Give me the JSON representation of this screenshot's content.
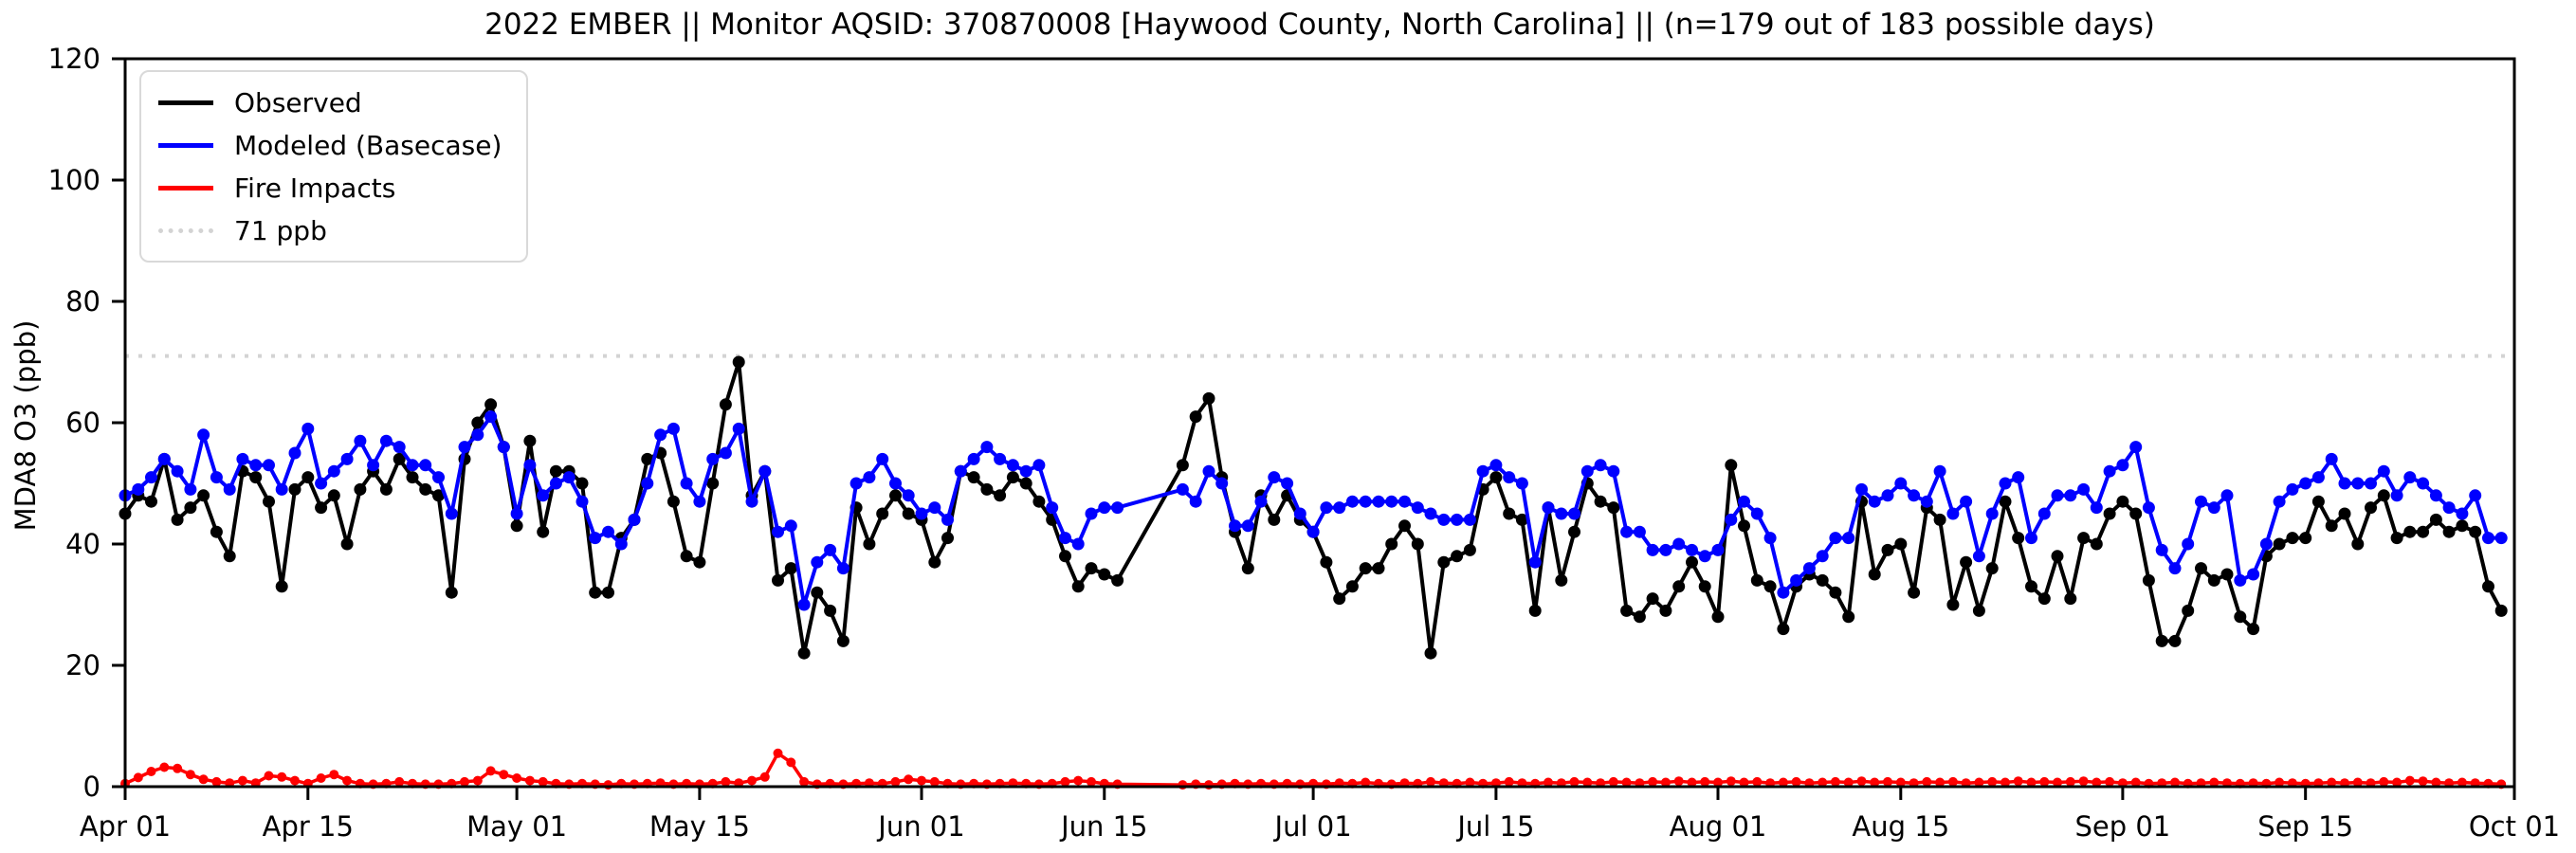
{
  "header": {
    "title": "2022 EMBER || Monitor AQSID: 370870008 [Haywood County, North Carolina] || (n=179 out of 183 possible days)"
  },
  "legend": {
    "position": "upper left",
    "items": [
      {
        "label": "Observed"
      },
      {
        "label": "Modeled (Basecase)"
      },
      {
        "label": "Fire Impacts"
      },
      {
        "label": "71 ppb"
      }
    ]
  },
  "chart_data": {
    "type": "line",
    "title": "2022 EMBER || Monitor AQSID: 370870008 [Haywood County, North Carolina] || (n=179 out of 183 possible days)",
    "xlabel": "",
    "ylabel": "MDA8 O3 (ppb)",
    "ylim": [
      0,
      120
    ],
    "y_ticks": [
      0,
      20,
      40,
      60,
      80,
      100,
      120
    ],
    "grid": false,
    "x_axis_days_total": 183,
    "x_ticks": [
      {
        "day": 0,
        "label": "Apr 01"
      },
      {
        "day": 14,
        "label": "Apr 15"
      },
      {
        "day": 30,
        "label": "May 01"
      },
      {
        "day": 44,
        "label": "May 15"
      },
      {
        "day": 61,
        "label": "Jun 01"
      },
      {
        "day": 75,
        "label": "Jun 15"
      },
      {
        "day": 91,
        "label": "Jul 01"
      },
      {
        "day": 105,
        "label": "Jul 15"
      },
      {
        "day": 122,
        "label": "Aug 01"
      },
      {
        "day": 136,
        "label": "Aug 15"
      },
      {
        "day": 153,
        "label": "Sep 01"
      },
      {
        "day": 167,
        "label": "Sep 15"
      },
      {
        "day": 183,
        "label": "Oct 01"
      }
    ],
    "threshold": {
      "value": 71,
      "label": "71 ppb",
      "color": "#d3d3d3"
    },
    "series": [
      {
        "name": "Observed",
        "color": "#000000",
        "line_width": 4,
        "marker_radius": 6.5,
        "values": [
          45,
          48,
          47,
          54,
          44,
          46,
          48,
          42,
          38,
          52,
          51,
          47,
          33,
          49,
          51,
          46,
          48,
          40,
          49,
          52,
          49,
          54,
          51,
          49,
          48,
          32,
          54,
          60,
          63,
          56,
          43,
          57,
          42,
          52,
          52,
          50,
          32,
          32,
          41,
          44,
          54,
          55,
          47,
          38,
          37,
          50,
          63,
          70,
          48,
          52,
          34,
          36,
          22,
          32,
          29,
          24,
          46,
          40,
          45,
          48,
          45,
          44,
          37,
          41,
          52,
          51,
          49,
          48,
          51,
          50,
          47,
          44,
          38,
          33,
          36,
          35,
          34,
          null,
          null,
          null,
          null,
          53,
          61,
          64,
          51,
          42,
          36,
          48,
          44,
          48,
          44,
          42,
          37,
          31,
          33,
          36,
          36,
          40,
          43,
          40,
          22,
          37,
          38,
          39,
          49,
          51,
          45,
          44,
          29,
          46,
          34,
          42,
          50,
          47,
          46,
          29,
          28,
          31,
          29,
          33,
          37,
          33,
          28,
          53,
          43,
          34,
          33,
          26,
          33,
          35,
          34,
          32,
          28,
          47,
          35,
          39,
          40,
          32,
          46,
          44,
          30,
          37,
          29,
          36,
          47,
          41,
          33,
          31,
          38,
          31,
          41,
          40,
          45,
          47,
          45,
          34,
          24,
          24,
          29,
          36,
          34,
          35,
          28,
          26,
          38,
          40,
          41,
          41,
          47,
          43,
          45,
          40,
          46,
          48,
          41,
          42,
          42,
          44,
          42,
          43,
          42,
          33,
          29
        ]
      },
      {
        "name": "Modeled (Basecase)",
        "color": "#0000ff",
        "line_width": 4,
        "marker_radius": 6.5,
        "values": [
          48,
          49,
          51,
          54,
          52,
          49,
          58,
          51,
          49,
          54,
          53,
          53,
          49,
          55,
          59,
          50,
          52,
          54,
          57,
          53,
          57,
          56,
          53,
          53,
          51,
          45,
          56,
          58,
          61,
          56,
          45,
          53,
          48,
          50,
          51,
          47,
          41,
          42,
          40,
          44,
          50,
          58,
          59,
          50,
          47,
          54,
          55,
          59,
          47,
          52,
          42,
          43,
          30,
          37,
          39,
          36,
          50,
          51,
          54,
          50,
          48,
          45,
          46,
          44,
          52,
          54,
          56,
          54,
          53,
          52,
          53,
          46,
          41,
          40,
          45,
          46,
          46,
          null,
          null,
          null,
          null,
          49,
          47,
          52,
          50,
          43,
          43,
          47,
          51,
          50,
          45,
          42,
          46,
          46,
          47,
          47,
          47,
          47,
          47,
          46,
          45,
          44,
          44,
          44,
          52,
          53,
          51,
          50,
          37,
          46,
          45,
          45,
          52,
          53,
          52,
          42,
          42,
          39,
          39,
          40,
          39,
          38,
          39,
          44,
          47,
          45,
          41,
          32,
          34,
          36,
          38,
          41,
          41,
          49,
          47,
          48,
          50,
          48,
          47,
          52,
          45,
          47,
          38,
          45,
          50,
          51,
          41,
          45,
          48,
          48,
          49,
          46,
          52,
          53,
          56,
          46,
          39,
          36,
          40,
          47,
          46,
          48,
          34,
          35,
          40,
          47,
          49,
          50,
          51,
          54,
          50,
          50,
          50,
          52,
          48,
          51,
          50,
          48,
          46,
          45,
          48,
          41,
          41
        ]
      },
      {
        "name": "Fire Impacts",
        "color": "#ff0000",
        "line_width": 3.5,
        "marker_radius": 5,
        "values": [
          0.5,
          1.5,
          2.5,
          3.2,
          3,
          2,
          1.2,
          0.8,
          0.6,
          1,
          0.6,
          1.8,
          1.6,
          1,
          0.5,
          1.4,
          2,
          1,
          0.5,
          0.4,
          0.5,
          0.8,
          0.5,
          0.4,
          0.4,
          0.5,
          0.8,
          1,
          2.6,
          2,
          1.4,
          1,
          0.8,
          0.5,
          0.4,
          0.5,
          0.4,
          0.3,
          0.5,
          0.4,
          0.5,
          0.6,
          0.4,
          0.5,
          0.4,
          0.5,
          0.8,
          0.6,
          1,
          1.6,
          5.5,
          4,
          0.8,
          0.4,
          0.5,
          0.4,
          0.5,
          0.6,
          0.5,
          0.8,
          1.2,
          1,
          0.8,
          0.5,
          0.4,
          0.5,
          0.4,
          0.5,
          0.6,
          0.5,
          0.4,
          0.5,
          0.8,
          1,
          0.8,
          0.5,
          0.4,
          null,
          null,
          null,
          null,
          0.3,
          0.4,
          0.3,
          0.4,
          0.5,
          0.4,
          0.5,
          0.4,
          0.5,
          0.4,
          0.5,
          0.4,
          0.6,
          0.5,
          0.7,
          0.5,
          0.4,
          0.6,
          0.5,
          0.8,
          0.6,
          0.5,
          0.7,
          0.5,
          0.6,
          0.8,
          0.6,
          0.5,
          0.7,
          0.6,
          0.8,
          0.7,
          0.6,
          0.8,
          0.7,
          0.6,
          0.8,
          0.7,
          0.9,
          0.7,
          0.8,
          0.7,
          0.9,
          0.7,
          0.8,
          0.6,
          0.7,
          0.8,
          0.6,
          0.7,
          0.8,
          0.7,
          0.9,
          0.7,
          0.8,
          0.7,
          0.6,
          0.8,
          0.7,
          0.8,
          0.6,
          0.7,
          0.8,
          0.7,
          0.9,
          0.7,
          0.8,
          0.7,
          0.8,
          0.9,
          0.7,
          0.8,
          0.6,
          0.7,
          0.5,
          0.6,
          0.7,
          0.5,
          0.6,
          0.7,
          0.6,
          0.5,
          0.6,
          0.5,
          0.7,
          0.6,
          0.5,
          0.6,
          0.7,
          0.6,
          0.7,
          0.6,
          0.8,
          0.7,
          1,
          0.9,
          0.7,
          0.6,
          0.7,
          0.6,
          0.5,
          0.4
        ]
      }
    ]
  }
}
